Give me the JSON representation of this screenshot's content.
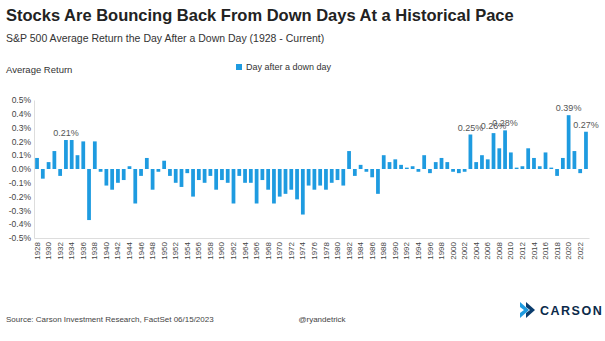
{
  "chart_data": {
    "type": "bar",
    "title": "Stocks Are Bouncing Back From Down Days At a Historical Pace",
    "subtitle": "S&P 500 Average Return the Day After a Down Day (1928 - Current)",
    "y_label": "Average Return",
    "source": "Source: Carson Investment Research, FactSet  06/15/2023",
    "credit": "@ryandetrick",
    "logo": "CARSON",
    "categories": [
      "1928",
      null,
      "1930",
      null,
      "1932",
      null,
      "1934",
      null,
      "1936",
      null,
      "1938",
      null,
      "1940",
      null,
      "1942",
      null,
      "1944",
      null,
      "1946",
      null,
      "1948",
      null,
      "1950",
      null,
      "1952",
      null,
      "1954",
      null,
      "1956",
      null,
      "1958",
      null,
      "1960",
      null,
      "1962",
      null,
      "1964",
      null,
      "1966",
      null,
      "1968",
      null,
      "1970",
      null,
      "1972",
      null,
      "1974",
      null,
      "1976",
      null,
      "1978",
      null,
      "1980",
      null,
      "1982",
      null,
      "1984",
      null,
      "1986",
      null,
      "1988",
      null,
      "1990",
      null,
      "1992",
      null,
      "1994",
      null,
      "1996",
      null,
      "1998",
      null,
      "2000",
      null,
      "2002",
      null,
      "2004",
      null,
      "2006",
      null,
      "2008",
      null,
      "2010",
      null,
      "2012",
      null,
      "2014",
      null,
      "2016",
      null,
      "2018",
      null,
      "2020",
      null,
      "2022",
      null
    ],
    "series": [
      {
        "name": "Day after a down day",
        "color": "#1e9be0",
        "values": [
          0.08,
          -0.07,
          0.05,
          0.13,
          -0.05,
          0.21,
          0.21,
          0.1,
          0.2,
          -0.37,
          0.2,
          -0.02,
          -0.12,
          -0.15,
          -0.1,
          -0.08,
          0.02,
          -0.25,
          -0.05,
          0.08,
          -0.15,
          -0.02,
          0.06,
          -0.05,
          -0.1,
          -0.13,
          -0.03,
          -0.2,
          -0.08,
          -0.1,
          -0.05,
          -0.15,
          -0.08,
          -0.1,
          -0.25,
          -0.05,
          -0.1,
          -0.1,
          -0.25,
          -0.08,
          -0.15,
          -0.25,
          -0.2,
          -0.18,
          -0.15,
          -0.22,
          -0.33,
          -0.12,
          -0.15,
          -0.12,
          -0.15,
          -0.1,
          -0.08,
          -0.12,
          0.13,
          -0.05,
          0.03,
          -0.02,
          -0.06,
          -0.18,
          0.1,
          0.05,
          0.07,
          0.03,
          0.01,
          0.02,
          -0.02,
          0.1,
          -0.03,
          0.05,
          0.08,
          0.05,
          -0.02,
          -0.03,
          -0.02,
          0.25,
          0.05,
          0.1,
          0.07,
          0.26,
          0.15,
          0.28,
          0.12,
          0.01,
          0.02,
          0.15,
          0.08,
          0.02,
          0.12,
          0.01,
          -0.05,
          0.08,
          0.39,
          0.13,
          -0.03,
          0.27
        ],
        "value_labels": [
          null,
          null,
          null,
          null,
          null,
          "0.21%",
          null,
          null,
          null,
          null,
          null,
          null,
          null,
          null,
          null,
          null,
          null,
          null,
          null,
          null,
          null,
          null,
          null,
          null,
          null,
          null,
          null,
          null,
          null,
          null,
          null,
          null,
          null,
          null,
          null,
          null,
          null,
          null,
          null,
          null,
          null,
          null,
          null,
          null,
          null,
          null,
          null,
          null,
          null,
          null,
          null,
          null,
          null,
          null,
          null,
          null,
          null,
          null,
          null,
          null,
          null,
          null,
          null,
          null,
          null,
          null,
          null,
          null,
          null,
          null,
          null,
          null,
          null,
          null,
          null,
          "0.25%",
          null,
          null,
          null,
          "0.26%",
          null,
          "0.28%",
          null,
          null,
          null,
          null,
          null,
          null,
          null,
          null,
          null,
          null,
          "0.39%",
          null,
          null,
          "0.27%"
        ]
      }
    ],
    "ylim": [
      -0.5,
      0.5
    ],
    "yticks": [
      {
        "value": -0.5,
        "label": "-0.5%"
      },
      {
        "value": -0.4,
        "label": "-0.4%"
      },
      {
        "value": -0.3,
        "label": "-0.3%"
      },
      {
        "value": -0.2,
        "label": "-0.2%"
      },
      {
        "value": -0.1,
        "label": "-0.1%"
      },
      {
        "value": 0,
        "label": "0.0%"
      },
      {
        "value": 0.1,
        "label": "0.1%"
      },
      {
        "value": 0.2,
        "label": "0.2%"
      },
      {
        "value": 0.3,
        "label": "0.3%"
      },
      {
        "value": 0.4,
        "label": "0.4%"
      },
      {
        "value": 0.5,
        "label": "0.5%"
      }
    ],
    "grid": false,
    "legend": "top",
    "data_labels": true
  }
}
